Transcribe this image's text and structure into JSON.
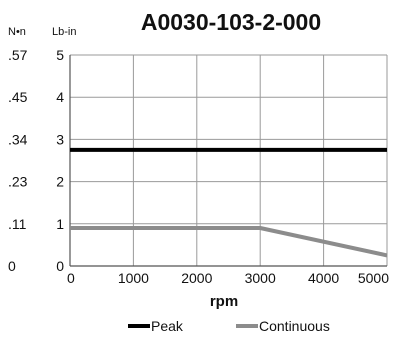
{
  "chart_data": {
    "type": "line",
    "title": "A0030-103-2-000",
    "xlabel": "rpm",
    "ylabel_left_outer": "N•n",
    "ylabel_left_inner": "Lb-in",
    "xlim": [
      0,
      5000
    ],
    "ylim": [
      0,
      5
    ],
    "x_ticks": [
      {
        "value": 0,
        "label": "0"
      },
      {
        "value": 1000,
        "label": "1000"
      },
      {
        "value": 2000,
        "label": "2000"
      },
      {
        "value": 3000,
        "label": "3000"
      },
      {
        "value": 4000,
        "label": "4000"
      },
      {
        "value": 5000,
        "label": "5000"
      }
    ],
    "y_ticks": [
      {
        "value": 0,
        "label": "0",
        "nm_label": "0"
      },
      {
        "value": 1,
        "label": "1",
        "nm_label": ".11"
      },
      {
        "value": 2,
        "label": "2",
        "nm_label": ".23"
      },
      {
        "value": 3,
        "label": "3",
        "nm_label": ".34"
      },
      {
        "value": 4,
        "label": "4",
        "nm_label": ".45"
      },
      {
        "value": 5,
        "label": "5",
        "nm_label": ".57"
      }
    ],
    "grid": true,
    "legend_position": "bottom",
    "series": [
      {
        "name": "Peak",
        "color": "#000000",
        "x": [
          0,
          5000
        ],
        "y": [
          2.75,
          2.75
        ]
      },
      {
        "name": "Continuous",
        "color": "#8c8c8c",
        "x": [
          0,
          3000,
          5000
        ],
        "y": [
          0.9,
          0.9,
          0.25
        ]
      }
    ]
  }
}
